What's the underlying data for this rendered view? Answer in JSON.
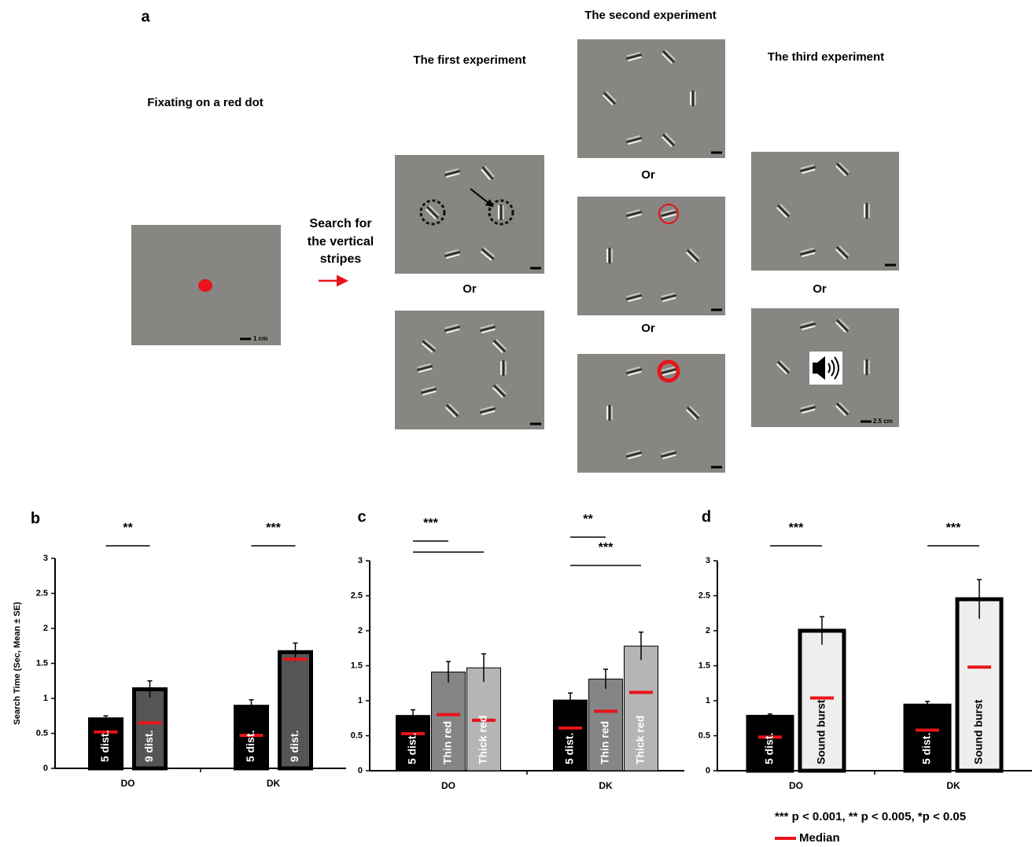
{
  "panel_a": {
    "label": "a",
    "fixation_title": "Fixating on a red dot",
    "scale_small": "1 cm",
    "search_text": [
      "Search for",
      "the vertical",
      "stripes"
    ],
    "first_title": "The first experiment",
    "second_title": "The second experiment",
    "third_title": "The third experiment",
    "or_labels": [
      "Or",
      "Or",
      "Or",
      "Or"
    ],
    "scale_large": "2.5 cm"
  },
  "chart_data": [
    {
      "type": "bar",
      "panel": "b",
      "y_label": "Search Time (Sec, Mean ± SE)",
      "categories": [
        "DO",
        "DK"
      ],
      "ylim": [
        0,
        3
      ],
      "yticks": [
        0,
        0.5,
        1,
        1.5,
        2,
        2.5,
        3
      ],
      "median_color": "#e8141b",
      "series": [
        {
          "name": "5 dist.",
          "color": "#000000",
          "label_color": "#ffffff",
          "values": [
            0.7,
            0.88
          ],
          "errors": [
            0.05,
            0.1
          ],
          "medians": [
            0.52,
            0.47
          ]
        },
        {
          "name": "9 dist.",
          "color": "#555555",
          "label_color": "#ffffff",
          "values": [
            1.13,
            1.66
          ],
          "errors": [
            0.12,
            0.13
          ],
          "medians": [
            0.65,
            1.56
          ]
        }
      ],
      "significance": [
        [
          "**"
        ],
        [
          "***"
        ]
      ]
    },
    {
      "type": "bar",
      "panel": "c",
      "categories": [
        "DO",
        "DK"
      ],
      "ylim": [
        0,
        3
      ],
      "yticks": [
        0,
        0.5,
        1,
        1.5,
        2,
        2.5,
        3
      ],
      "median_color": "#e8141b",
      "series": [
        {
          "name": "5 dist.",
          "color": "#000000",
          "label_color": "#ffffff",
          "values": [
            0.79,
            1.01
          ],
          "errors": [
            0.08,
            0.1
          ],
          "medians": [
            0.53,
            0.61
          ]
        },
        {
          "name": "Thin red",
          "color": "#858585",
          "label_color": "#ffffff",
          "values": [
            1.41,
            1.31
          ],
          "errors": [
            0.15,
            0.14
          ],
          "medians": [
            0.8,
            0.85
          ]
        },
        {
          "name": "Thick red",
          "color": "#b5b5b5",
          "label_color": "#ffffff",
          "values": [
            1.47,
            1.78
          ],
          "errors": [
            0.2,
            0.2
          ],
          "medians": [
            0.72,
            1.12
          ]
        }
      ],
      "significance": [
        [
          "***",
          null
        ],
        [
          "**",
          "***"
        ]
      ]
    },
    {
      "type": "bar",
      "panel": "d",
      "categories": [
        "DO",
        "DK"
      ],
      "ylim": [
        0,
        3
      ],
      "yticks": [
        0,
        0.5,
        1,
        1.5,
        2,
        2.5,
        3
      ],
      "median_color": "#e8141b",
      "series": [
        {
          "name": "5 dist.",
          "color": "#000000",
          "label_color": "#ffffff",
          "values": [
            0.77,
            0.93
          ],
          "errors": [
            0.04,
            0.06
          ],
          "medians": [
            0.48,
            0.58
          ]
        },
        {
          "name": "Sound burst",
          "color": "#eeeeee",
          "label_color": "#000000",
          "values": [
            2.0,
            2.45
          ],
          "errors": [
            0.2,
            0.28
          ],
          "medians": [
            1.04,
            1.48
          ]
        }
      ],
      "significance": [
        [
          "***"
        ],
        [
          "***"
        ]
      ]
    }
  ],
  "notes": {
    "footnote": "*** p < 0.001, ** p < 0.005, *p < 0.05",
    "legend": {
      "label": "Median",
      "color": "#e8141b"
    }
  }
}
